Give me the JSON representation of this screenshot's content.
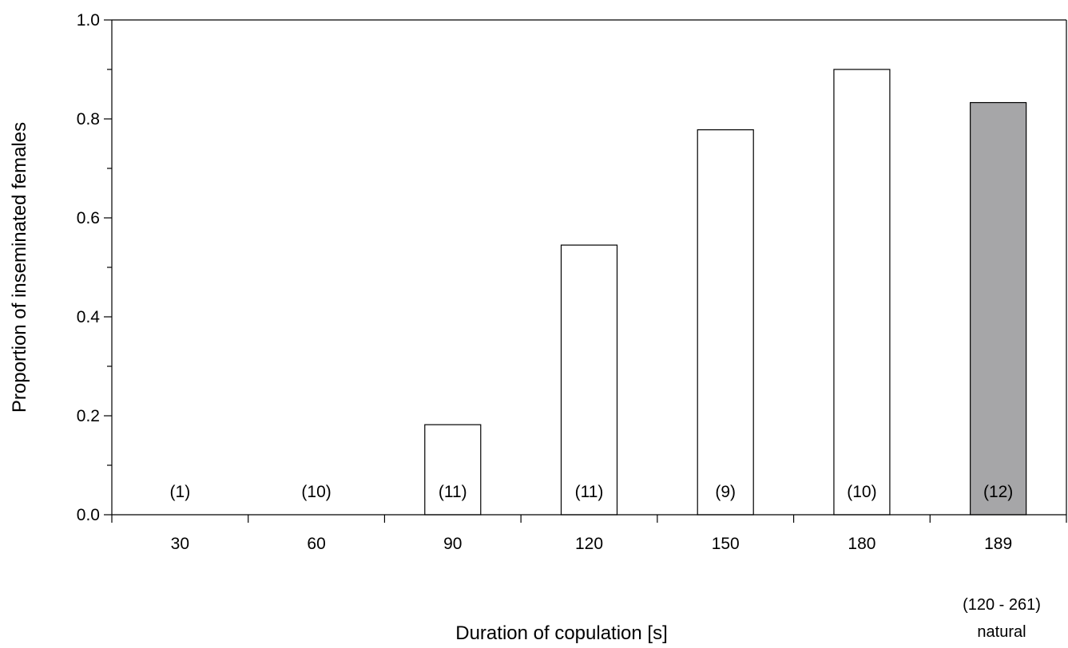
{
  "chart_data": {
    "type": "bar",
    "title": "",
    "xlabel": "Duration of copulation [s]",
    "ylabel": "Proportion of inseminated females",
    "ylim": [
      0,
      1.0
    ],
    "yticks": [
      "0.0",
      "0.2",
      "0.4",
      "0.6",
      "0.8",
      "1.0"
    ],
    "categories": [
      "30",
      "60",
      "90",
      "120",
      "150",
      "180",
      "189"
    ],
    "values": [
      0.0,
      0.0,
      0.182,
      0.545,
      0.778,
      0.9,
      0.833
    ],
    "counts": [
      "(1)",
      "(10)",
      "(11)",
      "(11)",
      "(9)",
      "(10)",
      "(12)"
    ],
    "bar_colors": [
      "#ffffff",
      "#ffffff",
      "#ffffff",
      "#ffffff",
      "#ffffff",
      "#ffffff",
      "#a6a6a8"
    ],
    "extra_labels": {
      "range": "(120 - 261)",
      "natural": "natural"
    },
    "grid": false
  }
}
